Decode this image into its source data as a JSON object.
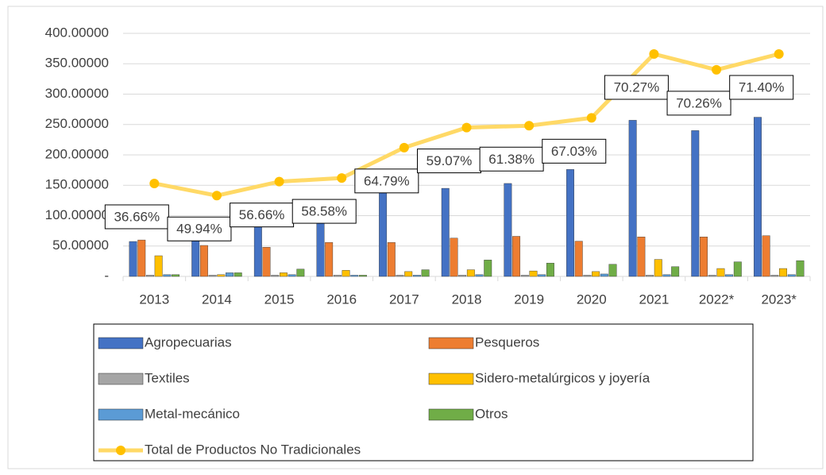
{
  "chart_data": {
    "type": "bar-line",
    "categories": [
      "2013",
      "2014",
      "2015",
      "2016",
      "2017",
      "2018",
      "2019",
      "2020",
      "2021",
      "2022*",
      "2023*"
    ],
    "series": [
      {
        "name": "Agropecuarias",
        "color": "#4472c4",
        "values": [
          57.5,
          67,
          89,
          95,
          138,
          145,
          153,
          176,
          257,
          240,
          262
        ]
      },
      {
        "name": "Pesqueros",
        "color": "#ed7d31",
        "values": [
          60,
          51,
          48,
          56,
          56,
          63,
          66,
          58,
          65,
          65,
          67
        ]
      },
      {
        "name": "Textiles",
        "color": "#a5a5a5",
        "values": [
          2,
          2,
          2,
          2,
          2,
          2,
          2,
          2,
          2,
          2,
          2
        ]
      },
      {
        "name": "Sidero-metalúrgicos y joyería",
        "color": "#ffc000",
        "values": [
          34,
          3,
          6,
          10,
          8,
          11,
          9,
          8,
          28,
          13,
          13
        ]
      },
      {
        "name": "Metal-mecánico",
        "color": "#5b9bd5",
        "values": [
          3,
          6,
          3,
          2,
          2,
          3,
          3,
          4,
          3,
          3,
          3
        ]
      },
      {
        "name": "Otros",
        "color": "#70ad47",
        "values": [
          3,
          6,
          12,
          2,
          11,
          27,
          22,
          20,
          16,
          24,
          26
        ]
      },
      {
        "name": "Total de Productos No Tradicionales",
        "color": "#ffd966",
        "marker_color": "#ffc000",
        "type": "line",
        "values": [
          153,
          133,
          156,
          162,
          212,
          245,
          248,
          261,
          366,
          340,
          366
        ]
      }
    ],
    "annotations": [
      "36.66%",
      "49.94%",
      "56.66%",
      "58.58%",
      "64.79%",
      "59.07%",
      "61.38%",
      "67.03%",
      "70.27%",
      "70.26%",
      "71.40%"
    ],
    "ylim": [
      0,
      400
    ],
    "yticks": [
      {
        "value": 0,
        "label": "-"
      },
      {
        "value": 50,
        "label": "50.00000"
      },
      {
        "value": 100,
        "label": "100.00000"
      },
      {
        "value": 150,
        "label": "150.00000"
      },
      {
        "value": 200,
        "label": "200.00000"
      },
      {
        "value": 250,
        "label": "250.00000"
      },
      {
        "value": 300,
        "label": "300.00000"
      },
      {
        "value": 350,
        "label": "350.00000"
      },
      {
        "value": 400,
        "label": "400.00000"
      }
    ],
    "grid": true,
    "legend": "bottom"
  }
}
